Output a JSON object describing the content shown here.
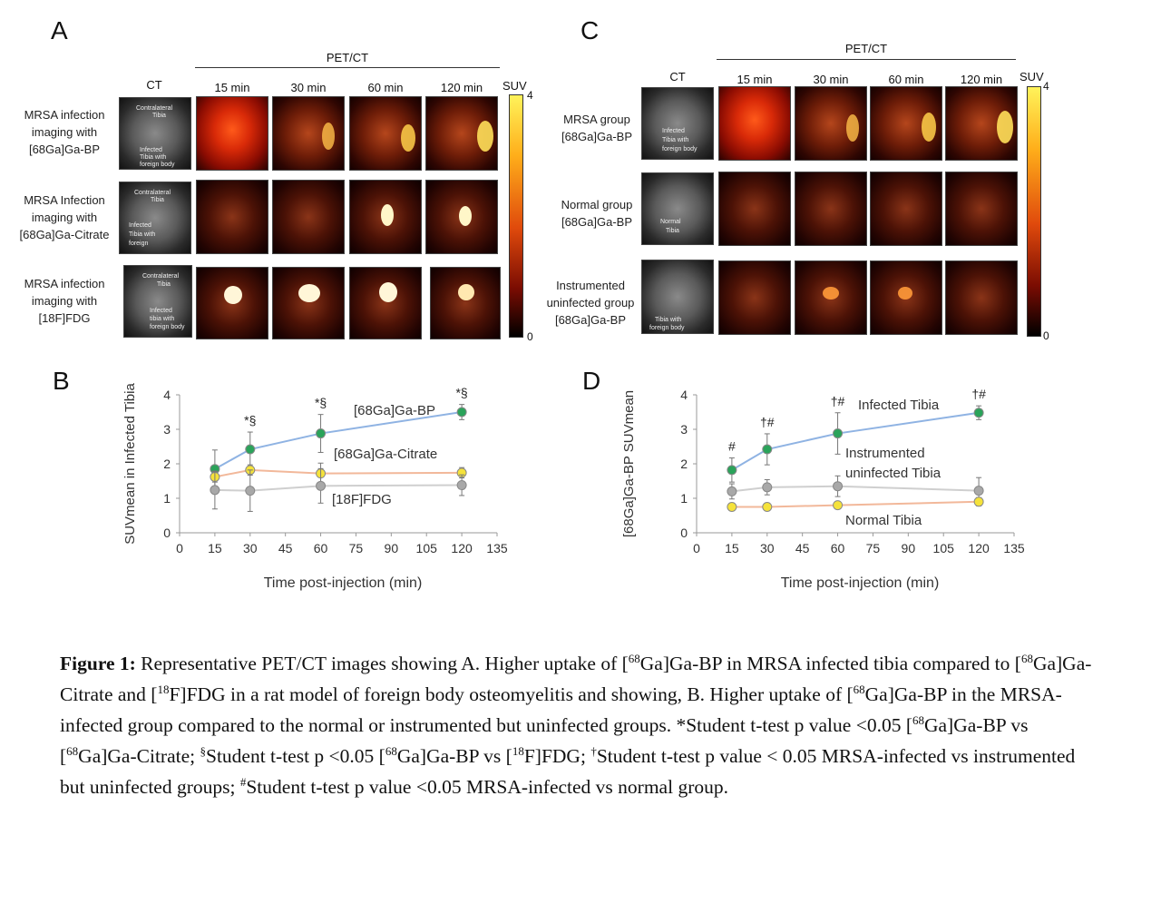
{
  "panel_a": {
    "letter": "A",
    "header_group": "PET/CT",
    "col_ct": "CT",
    "cols": [
      "15 min",
      "30 min",
      "60 min",
      "120 min"
    ],
    "suv_label": "SUV",
    "suv_max": "4",
    "suv_min": "0",
    "rows": [
      {
        "line1": "MRSA infection",
        "line2": "imaging with",
        "line3": "[68Ga]Ga-BP",
        "ct_labels": [
          "Contralateral",
          "Tibia",
          "Infected",
          "Tibia with",
          "foreign body"
        ]
      },
      {
        "line1": "MRSA Infection",
        "line2": "imaging with",
        "line3": "[68Ga]Ga-Citrate",
        "ct_labels": [
          "Contralateral",
          "Tibia",
          "Infected",
          "Tibia with",
          "foreign"
        ]
      },
      {
        "line1": "MRSA infection",
        "line2": "imaging with",
        "line3": "[18F]FDG",
        "ct_labels": [
          "Contralateral",
          "Tibia",
          "Infected",
          "tibia with",
          "foreign body"
        ]
      }
    ]
  },
  "panel_c": {
    "letter": "C",
    "header_group": "PET/CT",
    "col_ct": "CT",
    "cols": [
      "15 min",
      "30 min",
      "60 min",
      "120 min"
    ],
    "suv_label": "SUV",
    "suv_max": "4",
    "suv_min": "0",
    "rows": [
      {
        "line1": "MRSA group",
        "line2": "[68Ga]Ga-BP",
        "line3": "",
        "ct_labels": [
          "Infected",
          "Tibia with",
          "foreign body"
        ]
      },
      {
        "line1": "Normal group",
        "line2": "[68Ga]Ga-BP",
        "line3": "",
        "ct_labels": [
          "Normal",
          "Tibia"
        ]
      },
      {
        "line1": "Instrumented",
        "line2": "uninfected group",
        "line3": "[68Ga]Ga-BP",
        "ct_labels": [
          "Tibia with",
          "foreign body"
        ]
      }
    ]
  },
  "chart_data": [
    {
      "type": "line",
      "panel": "B",
      "xlabel": "Time post-injection (min)",
      "ylabel": "SUVmean in Infected Tibia",
      "xlim": [
        0,
        135
      ],
      "ylim": [
        0,
        4
      ],
      "xticks": [
        "0",
        "15",
        "30",
        "45",
        "60",
        "75",
        "90",
        "105",
        "120",
        "135"
      ],
      "yticks": [
        "0",
        "1",
        "2",
        "3",
        "4"
      ],
      "x": [
        15,
        30,
        60,
        120
      ],
      "series": [
        {
          "name": "[68Ga]Ga-BP",
          "values": [
            1.85,
            2.42,
            2.88,
            3.5
          ],
          "err": [
            0.55,
            0.5,
            0.55,
            0.22
          ],
          "color": "#2aa35a",
          "line": "#8fb3e3"
        },
        {
          "name": "[68Ga]Ga-Citrate",
          "values": [
            1.62,
            1.82,
            1.72,
            1.74
          ],
          "err": [
            0.15,
            0.15,
            0.3,
            0.15
          ],
          "color": "#f5e23a",
          "line": "#f2b89a"
        },
        {
          "name": "[18F]FDG",
          "values": [
            1.24,
            1.22,
            1.36,
            1.38
          ],
          "err": [
            0.55,
            0.6,
            0.5,
            0.3
          ],
          "color": "#a8a8a8",
          "line": "#cfcfcf"
        }
      ],
      "annotations": [
        {
          "x": 30,
          "label": "*§"
        },
        {
          "x": 60,
          "label": "*§"
        },
        {
          "x": 120,
          "label": "*§"
        }
      ],
      "grid": false
    },
    {
      "type": "line",
      "panel": "D",
      "xlabel": "Time post-injection (min)",
      "ylabel": "[68Ga]Ga-BP SUVmean",
      "xlim": [
        0,
        135
      ],
      "ylim": [
        0,
        4
      ],
      "xticks": [
        "0",
        "15",
        "30",
        "45",
        "60",
        "75",
        "90",
        "105",
        "120",
        "135"
      ],
      "yticks": [
        "0",
        "1",
        "2",
        "3",
        "4"
      ],
      "x": [
        15,
        30,
        60,
        120
      ],
      "series": [
        {
          "name": "Infected Tibia",
          "values": [
            1.82,
            2.42,
            2.88,
            3.48
          ],
          "err": [
            0.35,
            0.45,
            0.6,
            0.2
          ],
          "color": "#2aa35a",
          "line": "#8fb3e3"
        },
        {
          "name": "Instrumented uninfected Tibia",
          "values": [
            1.2,
            1.32,
            1.35,
            1.22
          ],
          "err": [
            0.22,
            0.22,
            0.3,
            0.38
          ],
          "color": "#a8a8a8",
          "line": "#cfcfcf"
        },
        {
          "name": "Normal Tibia",
          "values": [
            0.75,
            0.75,
            0.8,
            0.9
          ],
          "err": [
            0.08,
            0.08,
            0.1,
            0.12
          ],
          "color": "#f5e23a",
          "line": "#f2b89a"
        }
      ],
      "annotations": [
        {
          "x": 15,
          "label": "#"
        },
        {
          "x": 30,
          "label": "†#"
        },
        {
          "x": 60,
          "label": "†#"
        },
        {
          "x": 120,
          "label": "†#"
        }
      ],
      "grid": false
    }
  ],
  "panel_b": {
    "letter": "B"
  },
  "panel_d": {
    "letter": "D"
  },
  "caption": {
    "bold": "Figure 1:",
    "p1": " Representative PET/CT images showing A. Higher uptake of [",
    "s1": "68",
    "p2": "Ga]Ga-BP in MRSA infected tibia compared to [",
    "s2": "68",
    "p3": "Ga]Ga-Citrate and [",
    "s3": "18",
    "p4": "F]FDG in a rat model of foreign body osteomyelitis and showing, B. Higher uptake of [",
    "s4": "68",
    "p5": "Ga]Ga-BP in the MRSA-infected group compared to the normal or instrumented but uninfected groups. *Student t-test p value <0.05 [",
    "s5": "68",
    "p6": "Ga]Ga-BP vs [",
    "s6": "68",
    "p7": "Ga]Ga-Citrate; ",
    "s7": "§",
    "p8": "Student t-test p <0.05 [",
    "s8": "68",
    "p9": "Ga]Ga-BP vs [",
    "s9": "18",
    "p10": "F]FDG; ",
    "s10": "†",
    "p11": "Student t-test p value < 0.05 MRSA-infected vs instrumented but uninfected groups; ",
    "s11": "#",
    "p12": "Student t-test p value <0.05 MRSA-infected vs normal group."
  }
}
